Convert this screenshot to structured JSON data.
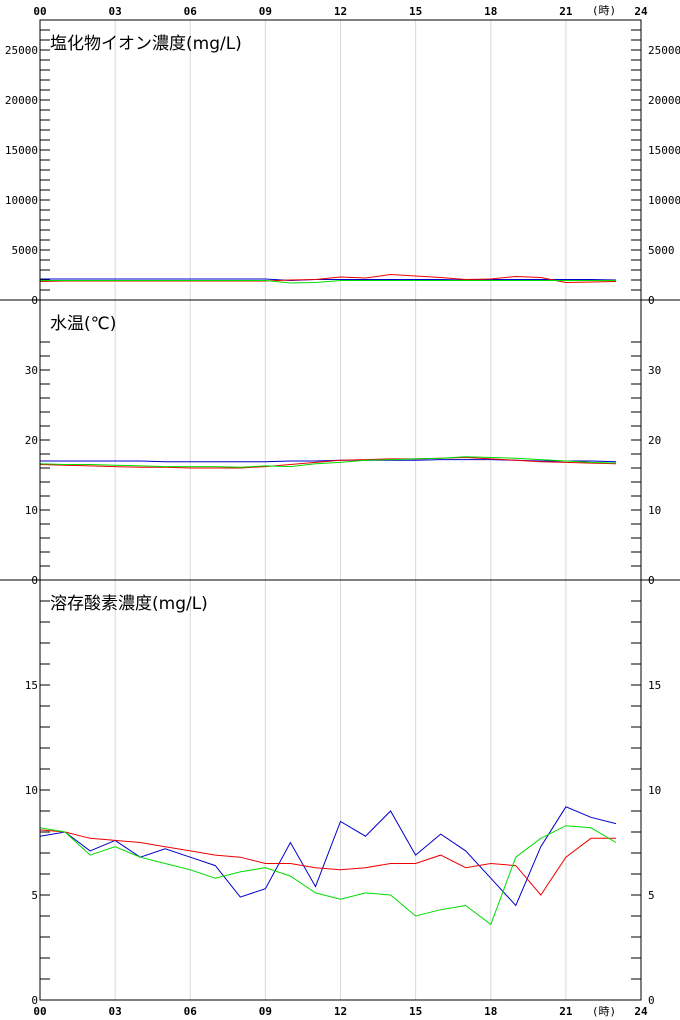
{
  "time_axis": {
    "labels": [
      "00",
      "03",
      "06",
      "09",
      "12",
      "15",
      "18",
      "21",
      "24"
    ],
    "unit": "(時)"
  },
  "colors": {
    "blue": "#0000cc",
    "red": "#ee0000",
    "green": "#00dd00",
    "grid": "#d8d8d8",
    "frame": "#000000"
  },
  "chart_data": [
    {
      "type": "line",
      "title": "塩化物イオン濃度(mg/L)",
      "xlabel": "(時)",
      "x": [
        0,
        1,
        2,
        3,
        4,
        5,
        6,
        7,
        8,
        9,
        10,
        11,
        12,
        13,
        14,
        15,
        16,
        17,
        18,
        19,
        20,
        21,
        22,
        23
      ],
      "ylim": [
        0,
        28000
      ],
      "yticks": [
        {
          "value": 0,
          "label": "0"
        },
        {
          "value": 5000,
          "label": "5000"
        },
        {
          "value": 10000,
          "label": "10000"
        },
        {
          "value": 15000,
          "label": "15000"
        },
        {
          "value": 20000,
          "label": "20000"
        },
        {
          "value": 25000,
          "label": "25000"
        }
      ],
      "minor_step": 1000,
      "grid": true,
      "series": [
        {
          "color": "blue",
          "values": [
            2100,
            2100,
            2100,
            2100,
            2100,
            2100,
            2100,
            2100,
            2100,
            2100,
            1950,
            2050,
            2050,
            2050,
            2050,
            2050,
            2050,
            2000,
            2050,
            2050,
            2050,
            2050,
            2050,
            2000
          ]
        },
        {
          "color": "red",
          "values": [
            1850,
            1900,
            1900,
            1900,
            1900,
            1900,
            1900,
            1900,
            1900,
            1900,
            2000,
            2050,
            2300,
            2200,
            2550,
            2400,
            2250,
            2050,
            2100,
            2350,
            2250,
            1750,
            1800,
            1850
          ]
        },
        {
          "color": "green",
          "values": [
            1950,
            1950,
            1950,
            1950,
            1950,
            1950,
            1950,
            1950,
            1950,
            1950,
            1700,
            1750,
            1950,
            1950,
            1950,
            1950,
            1950,
            1950,
            1950,
            1950,
            1950,
            1950,
            1950,
            1950
          ]
        }
      ]
    },
    {
      "type": "line",
      "title": "水温(℃)",
      "xlabel": "(時)",
      "x": [
        0,
        1,
        2,
        3,
        4,
        5,
        6,
        7,
        8,
        9,
        10,
        11,
        12,
        13,
        14,
        15,
        16,
        17,
        18,
        19,
        20,
        21,
        22,
        23
      ],
      "ylim": [
        0,
        40
      ],
      "yticks": [
        {
          "value": 0,
          "label": "0"
        },
        {
          "value": 10,
          "label": "10"
        },
        {
          "value": 20,
          "label": "20"
        },
        {
          "value": 30,
          "label": "30"
        }
      ],
      "minor_step": 2,
      "grid": true,
      "series": [
        {
          "color": "blue",
          "values": [
            17.0,
            17.0,
            17.0,
            17.0,
            17.0,
            16.9,
            16.9,
            16.9,
            16.9,
            16.9,
            17.0,
            17.0,
            17.1,
            17.1,
            17.1,
            17.1,
            17.2,
            17.2,
            17.2,
            17.1,
            17.0,
            17.0,
            17.0,
            16.9
          ]
        },
        {
          "color": "red",
          "values": [
            16.5,
            16.4,
            16.3,
            16.2,
            16.1,
            16.1,
            16.0,
            16.0,
            16.0,
            16.2,
            16.5,
            16.8,
            17.1,
            17.2,
            17.3,
            17.3,
            17.4,
            17.5,
            17.3,
            17.1,
            16.9,
            16.8,
            16.7,
            16.6
          ]
        },
        {
          "color": "green",
          "values": [
            16.6,
            16.5,
            16.5,
            16.4,
            16.3,
            16.2,
            16.2,
            16.2,
            16.1,
            16.3,
            16.2,
            16.6,
            16.8,
            17.1,
            17.2,
            17.3,
            17.4,
            17.6,
            17.5,
            17.4,
            17.2,
            17.0,
            16.8,
            16.7
          ]
        }
      ]
    },
    {
      "type": "line",
      "title": "溶存酸素濃度(mg/L)",
      "xlabel": "(時)",
      "x": [
        0,
        1,
        2,
        3,
        4,
        5,
        6,
        7,
        8,
        9,
        10,
        11,
        12,
        13,
        14,
        15,
        16,
        17,
        18,
        19,
        20,
        21,
        22,
        23
      ],
      "ylim": [
        0,
        20
      ],
      "yticks": [
        {
          "value": 0,
          "label": "0"
        },
        {
          "value": 5,
          "label": "5"
        },
        {
          "value": 10,
          "label": "10"
        },
        {
          "value": 15,
          "label": "15"
        }
      ],
      "minor_step": 1,
      "grid": true,
      "series": [
        {
          "color": "blue",
          "values": [
            7.8,
            8.0,
            7.1,
            7.6,
            6.8,
            7.2,
            6.8,
            6.4,
            4.9,
            5.3,
            7.5,
            5.4,
            8.5,
            7.8,
            9.0,
            6.9,
            7.9,
            7.1,
            5.8,
            4.5,
            7.3,
            9.2,
            8.7,
            8.4
          ]
        },
        {
          "color": "red",
          "values": [
            8.1,
            8.0,
            7.7,
            7.6,
            7.5,
            7.3,
            7.1,
            6.9,
            6.8,
            6.5,
            6.5,
            6.3,
            6.2,
            6.3,
            6.5,
            6.5,
            6.9,
            6.3,
            6.5,
            6.4,
            5.0,
            6.8,
            7.7,
            7.7
          ]
        },
        {
          "color": "green",
          "values": [
            8.2,
            8.0,
            6.9,
            7.3,
            6.8,
            6.5,
            6.2,
            5.8,
            6.1,
            6.3,
            5.9,
            5.1,
            4.8,
            5.1,
            5.0,
            4.0,
            4.3,
            4.5,
            3.6,
            6.8,
            7.7,
            8.3,
            8.2,
            7.5
          ]
        }
      ]
    }
  ]
}
